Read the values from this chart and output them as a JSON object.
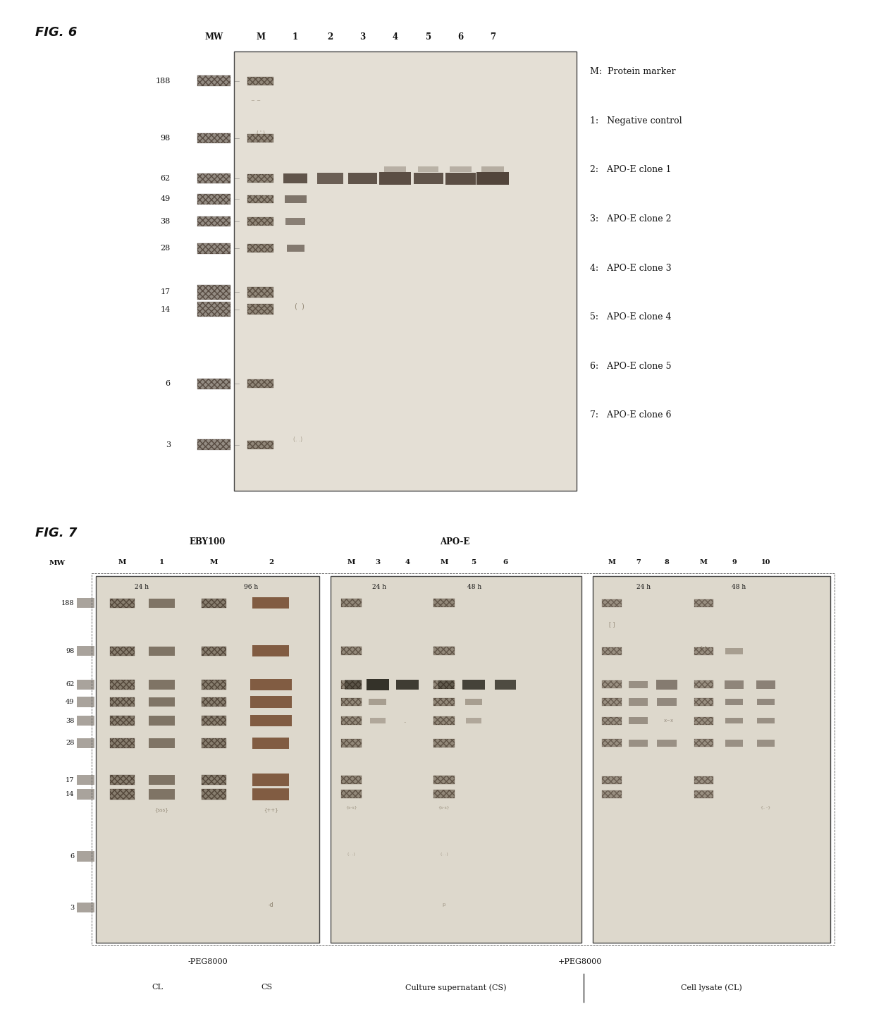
{
  "bg_color": "#ffffff",
  "gel_bg6": "#e8e4dc",
  "gel_bg7": "#ddd8d0",
  "band_dark": "#2a1a08",
  "band_med": "#4a3a20",
  "text_color": "#111111",
  "fig6": {
    "title": "FIG. 6",
    "mw_vals": [
      188,
      98,
      62,
      49,
      38,
      28,
      17,
      14,
      6,
      3
    ],
    "mw_labels": [
      "188",
      "98",
      "62",
      "49",
      "38",
      "28",
      "17",
      "14",
      "6",
      "3"
    ],
    "legend": [
      "M:  Protein marker",
      "1:   Negative control",
      "2:   APO-E clone 1",
      "3:   APO-E clone 2",
      "4:   APO-E clone 3",
      "5:   APO-E clone 4",
      "6:   APO-E clone 5",
      "7:   APO-E clone 6"
    ]
  },
  "fig7": {
    "title": "FIG. 7",
    "mw_vals": [
      188,
      98,
      62,
      49,
      38,
      28,
      17,
      14,
      6,
      3
    ],
    "panel1_title": "EBY100",
    "panel2_title": "APO-E",
    "neg_peg": "-PEG8000",
    "pos_peg": "+PEG8000",
    "cl_label": "CL",
    "cs_label": "CS",
    "culture_sup": "Culture supernatant (CS)",
    "cell_lysate": "Cell lysate (CL)"
  }
}
